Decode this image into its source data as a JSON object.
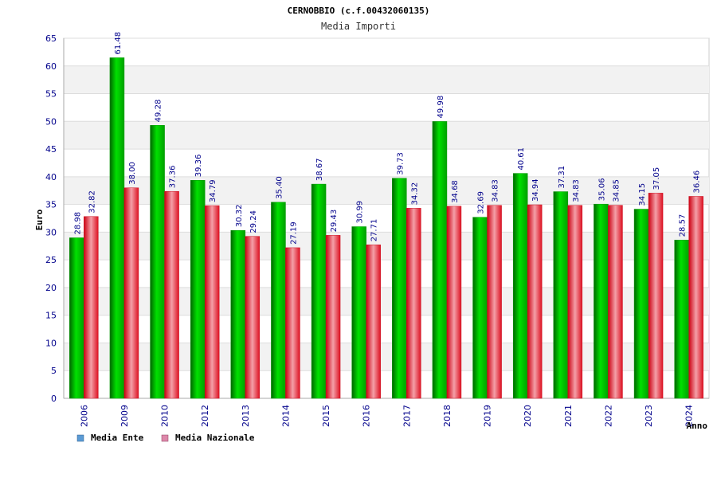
{
  "chart_data": {
    "type": "bar",
    "title": "CERNOBBIO (c.f.00432060135)",
    "subtitle": "Media Importi",
    "xlabel": "Anno",
    "ylabel": "Euro",
    "ylim": [
      0,
      65
    ],
    "yticks": [
      0,
      5,
      10,
      15,
      20,
      25,
      30,
      35,
      40,
      45,
      50,
      55,
      60,
      65
    ],
    "ytick_labels": [
      "0",
      "5",
      "10",
      "15",
      "20",
      "25",
      "30",
      "35",
      "40",
      "45",
      "50",
      "55",
      "60",
      "65"
    ],
    "grid": true,
    "legend_position": "bottom-left",
    "categories": [
      "2006",
      "2009",
      "2010",
      "2012",
      "2013",
      "2014",
      "2015",
      "2016",
      "2017",
      "2018",
      "2019",
      "2020",
      "2021",
      "2022",
      "2023",
      "2024"
    ],
    "series": [
      {
        "name": "Media Ente",
        "color": "#00cc00",
        "legend_color": "#5b9bd5",
        "values": [
          28.98,
          61.48,
          49.28,
          39.36,
          30.32,
          35.4,
          38.67,
          30.99,
          39.73,
          49.98,
          32.69,
          40.61,
          37.31,
          35.06,
          34.15,
          28.57
        ],
        "labels": [
          "28.98",
          "61.48",
          "49.28",
          "39.36",
          "30.32",
          "35.40",
          "38.67",
          "30.99",
          "39.73",
          "49.98",
          "32.69",
          "40.61",
          "37.31",
          "35.06",
          "34.15",
          "28.57"
        ]
      },
      {
        "name": "Media Nazionale",
        "color": "#ee2233",
        "legend_color": "#dd88aa",
        "values": [
          32.82,
          38.0,
          37.36,
          34.79,
          29.24,
          27.19,
          29.43,
          27.71,
          34.32,
          34.68,
          34.83,
          34.94,
          34.83,
          34.85,
          37.05,
          36.46
        ],
        "labels": [
          "32.82",
          "38.00",
          "37.36",
          "34.79",
          "29.24",
          "27.19",
          "29.43",
          "27.71",
          "34.32",
          "34.68",
          "34.83",
          "34.94",
          "34.83",
          "34.85",
          "37.05",
          "36.46"
        ]
      }
    ]
  }
}
